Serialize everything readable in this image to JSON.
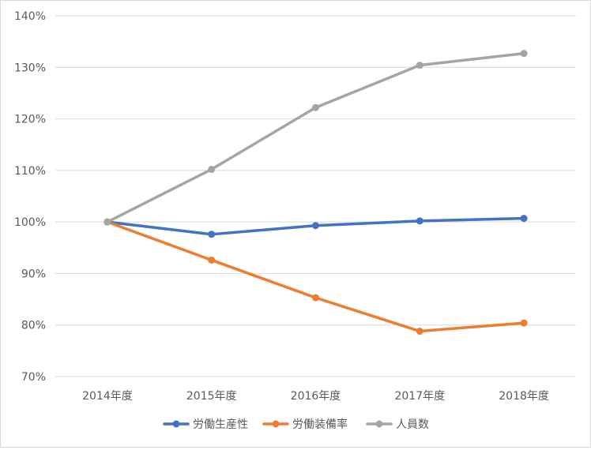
{
  "chart_data": {
    "type": "line",
    "categories": [
      "2014年度",
      "2015年度",
      "2016年度",
      "2017年度",
      "2018年度"
    ],
    "y_ticks": [
      "70%",
      "80%",
      "90%",
      "100%",
      "110%",
      "120%",
      "130%",
      "140%"
    ],
    "ylim": [
      70,
      140
    ],
    "grid": true,
    "legend_position": "bottom",
    "series": [
      {
        "name": "労働生産性",
        "color": "#4472c4",
        "values": [
          100.0,
          97.6,
          99.3,
          100.2,
          100.7
        ]
      },
      {
        "name": "労働装備率",
        "color": "#ed7d31",
        "values": [
          100.0,
          92.6,
          85.3,
          78.8,
          80.4
        ]
      },
      {
        "name": "人員数",
        "color": "#a5a5a5",
        "values": [
          100.0,
          110.2,
          122.2,
          130.4,
          132.7
        ]
      }
    ]
  }
}
